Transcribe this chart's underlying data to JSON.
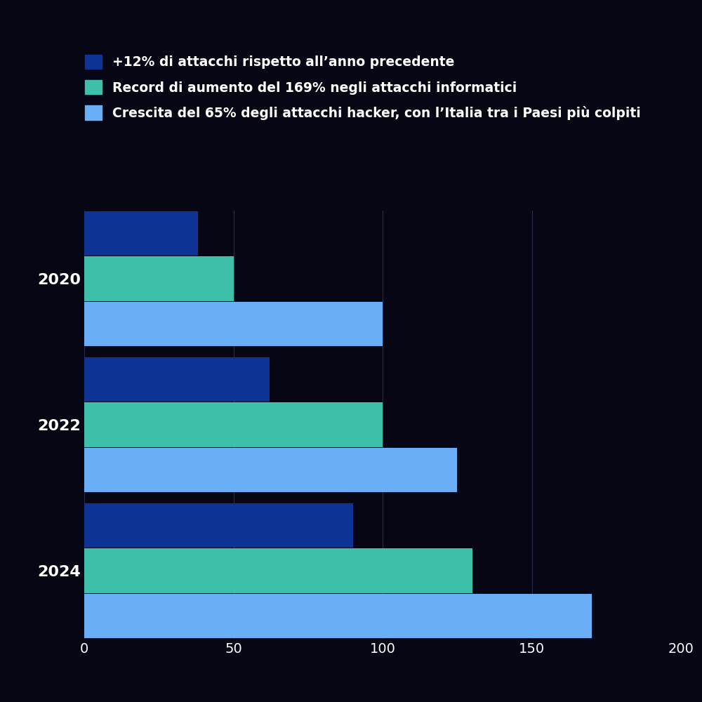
{
  "years": [
    "2020",
    "2022",
    "2024"
  ],
  "series": [
    {
      "label": "+12% di attacchi rispetto all’anno precedente",
      "color": "#0d3494",
      "values": [
        38,
        62,
        90
      ]
    },
    {
      "label": "Record di aumento del 169% negli attacchi informatici",
      "color": "#3dbfaa",
      "values": [
        50,
        100,
        130
      ]
    },
    {
      "label": "Crescita del 65% degli attacchi hacker, con l’Italia tra i Paesi più colpiti",
      "color": "#6aaef5",
      "values": [
        100,
        125,
        170
      ]
    }
  ],
  "xlim": [
    0,
    200
  ],
  "xticks": [
    0,
    50,
    100,
    150,
    200
  ],
  "background_color": "#060614",
  "text_color": "#ffffff",
  "grid_color": "#2a2a4a",
  "bar_height": 0.28,
  "legend_fontsize": 13.5,
  "tick_fontsize": 14,
  "ylabel_fontsize": 16
}
